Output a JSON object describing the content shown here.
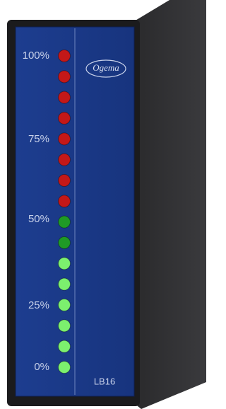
{
  "scale_labels": [
    "100%",
    "75%",
    "50%",
    "25%",
    "0%"
  ],
  "logo": "Ogema",
  "model": "LB16"
}
